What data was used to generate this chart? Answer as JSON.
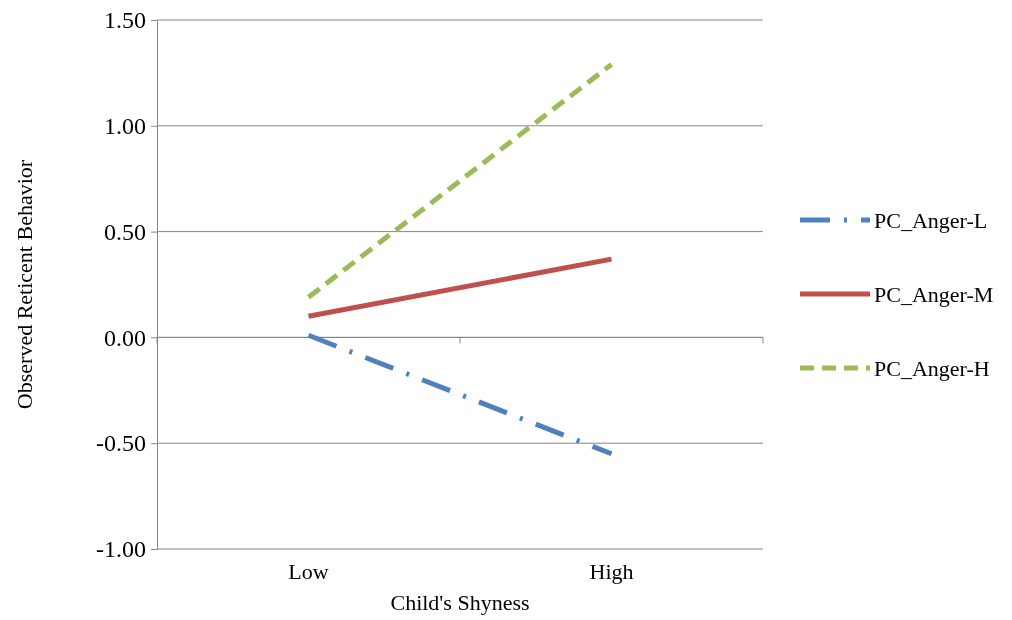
{
  "chart_data": {
    "type": "line",
    "xlabel": "Child's Shyness",
    "ylabel": "Observed Reticent Behavior",
    "categories": [
      "Low",
      "High"
    ],
    "series": [
      {
        "name": "PC_Anger-L",
        "color": "#4f81bd",
        "values": [
          0.01,
          -0.55
        ],
        "line_style": "dashdot"
      },
      {
        "name": "PC_Anger-M",
        "color": "#c0504d",
        "values": [
          0.1,
          0.37
        ],
        "line_style": "solid"
      },
      {
        "name": "PC_Anger-H",
        "color": "#9bbb59",
        "values": [
          0.19,
          1.29
        ],
        "line_style": "dashed"
      }
    ],
    "ylim": [
      -1,
      1.5
    ],
    "yticks": [
      {
        "value": -1,
        "label": "-1.00"
      },
      {
        "value": -0.5,
        "label": "-0.50"
      },
      {
        "value": 0,
        "label": "0.00"
      },
      {
        "value": 0.5,
        "label": "0.50"
      },
      {
        "value": 1,
        "label": "1.00"
      },
      {
        "value": 1.5,
        "label": "1.50"
      }
    ],
    "grid": "y",
    "legend": "right",
    "marker": "none"
  }
}
